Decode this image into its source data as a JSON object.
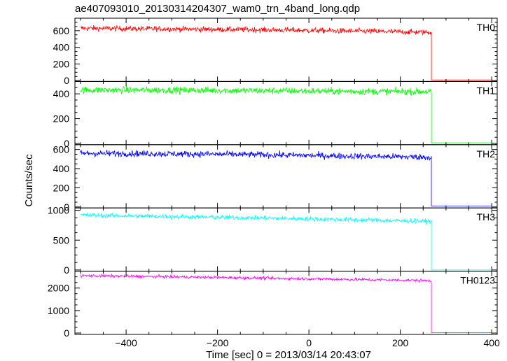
{
  "chart_data": {
    "type": "line",
    "title": "ae407093010_20130314204307_wam0_trn_4band_long.qdp",
    "xlabel": "Time [sec] 0 = 2013/03/14 20:43:07",
    "ylabel": "Counts/sec",
    "xlim": [
      -512,
      412
    ],
    "xticks": [
      -400,
      -200,
      0,
      200,
      400
    ],
    "grid": false,
    "panels": [
      {
        "name": "TH0",
        "color": "#ff0000",
        "ylim": [
          -10,
          750
        ],
        "yticks": [
          0,
          200,
          400,
          600
        ],
        "trend": {
          "x": [
            -500,
            -300,
            -100,
            100,
            268,
            270,
            400
          ],
          "y": [
            630,
            620,
            610,
            595,
            580,
            8,
            8
          ]
        },
        "noise_amplitude": 30
      },
      {
        "name": "TH1",
        "color": "#00ff00",
        "ylim": [
          -10,
          500
        ],
        "yticks": [
          0,
          200,
          400
        ],
        "trend": {
          "x": [
            -500,
            -300,
            -100,
            100,
            268,
            270,
            400
          ],
          "y": [
            430,
            430,
            425,
            420,
            418,
            5,
            5
          ]
        },
        "noise_amplitude": 25
      },
      {
        "name": "TH2",
        "color": "#0000ff",
        "ylim": [
          -10,
          650
        ],
        "yticks": [
          0,
          200,
          400,
          600
        ],
        "trend": {
          "x": [
            -500,
            -300,
            -100,
            100,
            268,
            270,
            400
          ],
          "y": [
            560,
            555,
            545,
            530,
            520,
            10,
            10
          ]
        },
        "noise_amplitude": 30
      },
      {
        "name": "TH3",
        "color": "#00ffff",
        "ylim": [
          -20,
          1040
        ],
        "yticks": [
          0,
          500,
          1000
        ],
        "trend": {
          "x": [
            -500,
            -300,
            -100,
            100,
            268,
            270,
            400
          ],
          "y": [
            920,
            895,
            870,
            840,
            815,
            0,
            0
          ]
        },
        "noise_amplitude": 35
      },
      {
        "name": "TH0123",
        "color": "#ff00ff",
        "ylim": [
          -60,
          2750
        ],
        "yticks": [
          0,
          1000,
          2000
        ],
        "trend": {
          "x": [
            -500,
            -300,
            -100,
            100,
            268,
            270,
            400
          ],
          "y": [
            2550,
            2500,
            2440,
            2380,
            2330,
            20,
            20
          ]
        },
        "noise_amplitude": 60
      }
    ]
  }
}
